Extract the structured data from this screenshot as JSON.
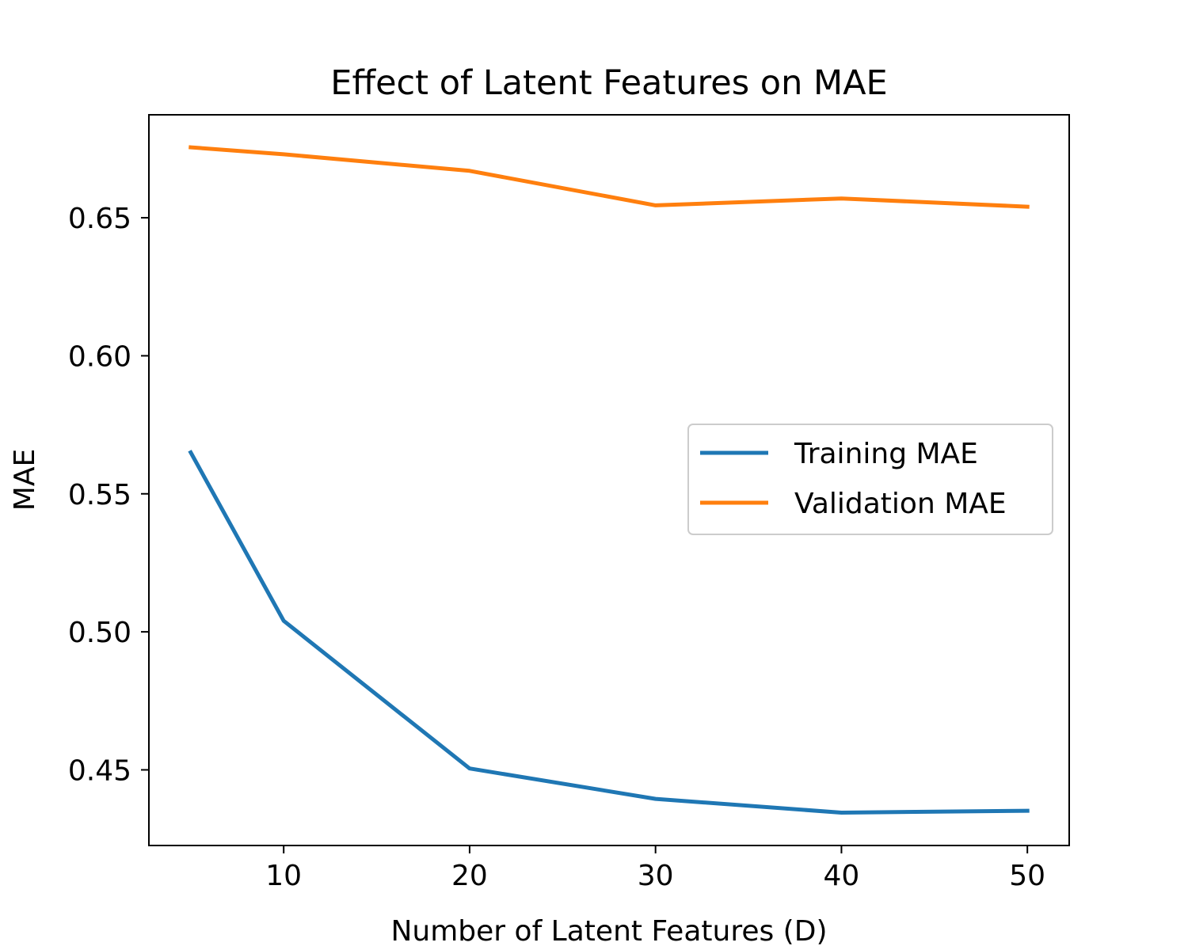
{
  "chart_data": {
    "type": "line",
    "title": "Effect of Latent Features on MAE",
    "xlabel": "Number of Latent Features (D)",
    "ylabel": "MAE",
    "x": [
      5,
      10,
      20,
      30,
      40,
      50
    ],
    "series": [
      {
        "name": "Training MAE",
        "color": "#1f77b4",
        "values": [
          0.565,
          0.504,
          0.4505,
          0.4395,
          0.4345,
          0.4352
        ]
      },
      {
        "name": "Validation MAE",
        "color": "#ff7f0e",
        "values": [
          0.6755,
          0.673,
          0.667,
          0.6545,
          0.657,
          0.654
        ]
      }
    ],
    "xticks": [
      10,
      20,
      30,
      40,
      50
    ],
    "xtick_labels": [
      "10",
      "20",
      "30",
      "40",
      "50"
    ],
    "yticks": [
      0.45,
      0.5,
      0.55,
      0.6,
      0.65
    ],
    "ytick_labels": [
      "0.45",
      "0.50",
      "0.55",
      "0.60",
      "0.65"
    ],
    "xlim": [
      2.75,
      52.25
    ],
    "ylim": [
      0.4226,
      0.6873
    ],
    "grid": false,
    "legend_position": "center-right"
  }
}
